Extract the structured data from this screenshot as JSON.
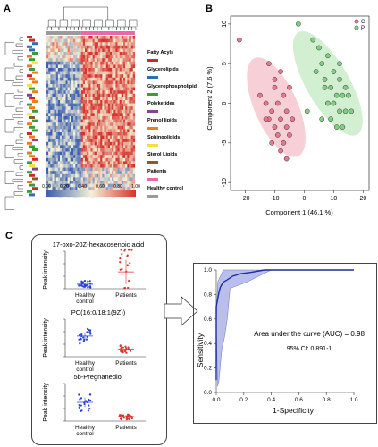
{
  "panels": {
    "a": "A",
    "b": "B",
    "c": "C"
  },
  "heatmap": {
    "legend": [
      {
        "label": "Fatty Acyls",
        "color": "#d7262b"
      },
      {
        "label": "Glycerolipids",
        "color": "#2a6fb4"
      },
      {
        "label": "Glycerophospholipid",
        "color": "#3a9c3a"
      },
      {
        "label": "Polyketides",
        "color": "#8b3f98"
      },
      {
        "label": "Prenol lipids",
        "color": "#f07d1a"
      },
      {
        "label": "Sphingolipids",
        "color": "#f2e23a"
      },
      {
        "label": "Sterol Lipids",
        "color": "#8a5a2b"
      },
      {
        "label": "Patients",
        "color": "#e868a8"
      },
      {
        "label": "Healthy control",
        "color": "#9a9a9a"
      }
    ],
    "colorbar_ticks": [
      "0.00",
      "0.20",
      "0.40",
      "0.60",
      "0.80",
      "1.00"
    ],
    "colors": {
      "low": "#3b5fb0",
      "mid": "#f4f1d6",
      "high": "#d7322d"
    }
  },
  "pca": {
    "xlabel": "Component 1 (46.1 %)",
    "ylabel": "Component 2 (7.6 %)",
    "legend": [
      {
        "label": "C",
        "color": "#e8768c"
      },
      {
        "label": "P",
        "color": "#7ed07e"
      }
    ],
    "xticks": [
      "-20",
      "-10",
      "0",
      "10",
      "20"
    ],
    "yticks": [
      "10",
      "5",
      "0",
      "-5",
      "-10"
    ]
  },
  "scatter_panels": [
    {
      "title": "17-oxo-20Z-hexacosenoic acid",
      "ylabel": "Peak intensity",
      "group1": "Healthy control",
      "group2": "Patients"
    },
    {
      "title": "PC(16:0/18:1(9Z))",
      "ylabel": "Peak intensity",
      "group1": "Healthy control",
      "group2": "Patients"
    },
    {
      "title": "5b-Pregnanediol",
      "ylabel": "Peak intensity",
      "group1": "Healthy control",
      "group2": "Patients"
    }
  ],
  "roc": {
    "xlabel": "1-Specificity",
    "ylabel": "Sensitivity",
    "auc_text": "Area under the curve (AUC) = 0.98",
    "ci_text": "95% CI: 0.891-1",
    "xticks": [
      "0.0",
      "0.2",
      "0.4",
      "0.6",
      "0.8",
      "1.0"
    ],
    "yticks": [
      "1.0",
      "0.8",
      "0.6",
      "0.4",
      "0.2",
      "0.0"
    ]
  },
  "chart_data": [
    {
      "type": "scatter",
      "xlabel": "Component 1 (46.1 %)",
      "ylabel": "Component 2 (7.6 %)",
      "xlim": [
        -25,
        22
      ],
      "ylim": [
        -11,
        11
      ],
      "series": [
        {
          "name": "C",
          "color": "#e8768c",
          "points": [
            [
              -22,
              8
            ],
            [
              -12,
              5
            ],
            [
              -10,
              3
            ],
            [
              -8,
              4
            ],
            [
              -15,
              1
            ],
            [
              -13,
              0
            ],
            [
              -11,
              -1
            ],
            [
              -9,
              0
            ],
            [
              -7,
              1
            ],
            [
              -6,
              -1
            ],
            [
              -12,
              -2
            ],
            [
              -10,
              -3
            ],
            [
              -8,
              -2
            ],
            [
              -6,
              -3
            ],
            [
              -9,
              -4
            ],
            [
              -7,
              -5
            ],
            [
              -5,
              -4
            ],
            [
              -11,
              -5
            ],
            [
              -4,
              -2
            ],
            [
              -6,
              -7
            ],
            [
              -8,
              -6
            ],
            [
              -13,
              -2
            ],
            [
              -10,
              2
            ],
            [
              -5,
              2
            ]
          ]
        },
        {
          "name": "P",
          "color": "#7ed07e",
          "points": [
            [
              -2,
              10
            ],
            [
              3,
              8
            ],
            [
              5,
              7
            ],
            [
              6,
              5
            ],
            [
              8,
              6
            ],
            [
              4,
              4
            ],
            [
              10,
              4
            ],
            [
              12,
              3
            ],
            [
              7,
              2
            ],
            [
              9,
              2
            ],
            [
              11,
              1
            ],
            [
              13,
              1
            ],
            [
              8,
              0
            ],
            [
              10,
              0
            ],
            [
              14,
              -1
            ],
            [
              12,
              -1
            ],
            [
              6,
              -2
            ],
            [
              9,
              -2
            ],
            [
              11,
              -3
            ],
            [
              13,
              -3
            ],
            [
              15,
              1
            ],
            [
              16,
              -1
            ],
            [
              7,
              3
            ],
            [
              14,
              2
            ],
            [
              1,
              -1
            ],
            [
              12,
              5
            ]
          ]
        }
      ]
    },
    {
      "type": "line",
      "xlabel": "1-Specificity",
      "ylabel": "Sensitivity",
      "xlim": [
        0,
        1
      ],
      "ylim": [
        0,
        1
      ],
      "series": [
        {
          "name": "",
          "x": [
            0.0,
            0.0,
            0.02,
            0.03,
            0.05,
            0.08,
            0.12,
            0.18,
            0.25,
            0.35,
            1.0
          ],
          "y": [
            0.1,
            0.7,
            0.82,
            0.86,
            0.9,
            0.92,
            0.95,
            0.97,
            0.98,
            1.0,
            1.0
          ]
        }
      ]
    }
  ]
}
